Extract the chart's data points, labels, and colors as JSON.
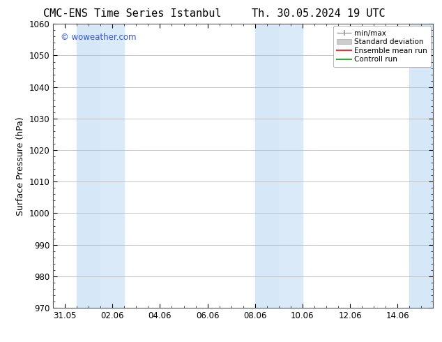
{
  "title_left": "CMC-ENS Time Series Istanbul",
  "title_right": "Th. 30.05.2024 19 UTC",
  "ylabel": "Surface Pressure (hPa)",
  "ylim": [
    970,
    1060
  ],
  "yticks": [
    970,
    980,
    990,
    1000,
    1010,
    1020,
    1030,
    1040,
    1050,
    1060
  ],
  "xtick_labels": [
    "31.05",
    "02.06",
    "04.06",
    "06.06",
    "08.06",
    "10.06",
    "12.06",
    "14.06"
  ],
  "xtick_positions": [
    0,
    2,
    4,
    6,
    8,
    10,
    12,
    14
  ],
  "xlim": [
    -0.5,
    15.5
  ],
  "watermark": "© woweather.com",
  "watermark_color": "#3355cc",
  "shaded_bands": [
    {
      "x_start": 0.5,
      "x_end": 1.5,
      "color": "#d6e8f8"
    },
    {
      "x_start": 1.5,
      "x_end": 2.5,
      "color": "#daeaf8"
    },
    {
      "x_start": 8.0,
      "x_end": 9.0,
      "color": "#d6e8f8"
    },
    {
      "x_start": 9.0,
      "x_end": 10.0,
      "color": "#daeaf8"
    },
    {
      "x_start": 14.5,
      "x_end": 15.5,
      "color": "#d6e8f8"
    }
  ],
  "background_color": "#ffffff",
  "plot_bg_color": "#ffffff",
  "grid_color": "#bbbbbb",
  "title_fontsize": 11,
  "axis_label_fontsize": 9,
  "tick_fontsize": 8.5,
  "legend_fontsize": 7.5
}
